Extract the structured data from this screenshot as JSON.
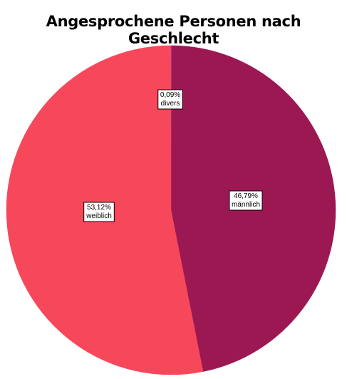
{
  "chart_data": {
    "type": "pie",
    "title": "Angesprochene Personen nach Geschlecht",
    "start": "top",
    "direction": "clockwise",
    "legend": "none",
    "slices": [
      {
        "label": "divers",
        "value": 0.09,
        "value_label": "0,09%",
        "color": "#6b3fa0"
      },
      {
        "label": "männlich",
        "value": 46.79,
        "value_label": "46,79%",
        "color": "#9c1853"
      },
      {
        "label": "weiblich",
        "value": 53.12,
        "value_label": "53,12%",
        "color": "#f7475a"
      }
    ]
  }
}
